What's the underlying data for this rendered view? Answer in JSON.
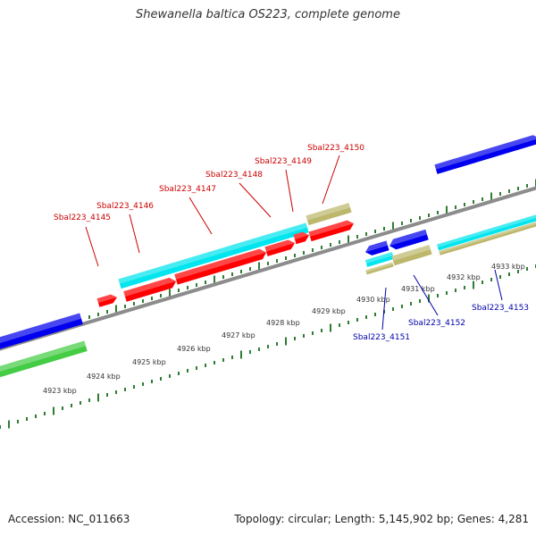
{
  "title": "Shewanella baltica OS223, complete genome",
  "footer": {
    "accession": "Accession: NC_011663",
    "summary": "Topology: circular; Length: 5,145,902 bp; Genes: 4,281"
  },
  "colors": {
    "backbone": "#8c8c8c",
    "tick": "#2e7d32",
    "red": "#ff0000",
    "cyan": "#00e5ee",
    "blue": "#0000ee",
    "khaki": "#bdb76b",
    "green": "#44cc44",
    "label_red": "#cc0000",
    "label_blue": "#0000aa"
  },
  "ticks": [
    {
      "label": "4923 kbp"
    },
    {
      "label": "4924 kbp"
    },
    {
      "label": "4925 kbp"
    },
    {
      "label": "4926 kbp"
    },
    {
      "label": "4927 kbp"
    },
    {
      "label": "4928 kbp"
    },
    {
      "label": "4929 kbp"
    },
    {
      "label": "4930 kbp"
    },
    {
      "label": "4931 kbp"
    },
    {
      "label": "4932 kbp"
    },
    {
      "label": "4933 kbp"
    }
  ],
  "gene_labels": [
    {
      "text": "Sbal223_4145",
      "color": "label_red"
    },
    {
      "text": "Sbal223_4146",
      "color": "label_red"
    },
    {
      "text": "Sbal223_4147",
      "color": "label_red"
    },
    {
      "text": "Sbal223_4148",
      "color": "label_red"
    },
    {
      "text": "Sbal223_4149",
      "color": "label_red"
    },
    {
      "text": "Sbal223_4150",
      "color": "label_red"
    },
    {
      "text": "Sbal223_4151",
      "color": "label_blue"
    },
    {
      "text": "Sbal223_4152",
      "color": "label_blue"
    },
    {
      "text": "Sbal223_4153",
      "color": "label_blue"
    }
  ]
}
